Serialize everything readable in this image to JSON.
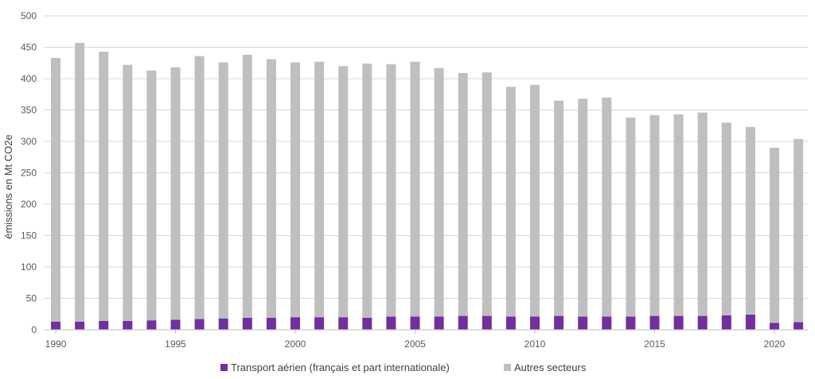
{
  "colors": {
    "air": "#7030A0",
    "other": "#BFBFBF",
    "grid": "#D9D9D9",
    "axis": "#BFBFBF"
  },
  "chart_data": {
    "type": "bar",
    "stacked": true,
    "ylabel": "émissions en Mt CO2e",
    "xlabel": "",
    "ylim": [
      0,
      500
    ],
    "yticks": [
      0,
      50,
      100,
      150,
      200,
      250,
      300,
      350,
      400,
      450,
      500
    ],
    "xtick_labels": [
      "1990",
      "1995",
      "2000",
      "2005",
      "2010",
      "2015",
      "2020"
    ],
    "categories": [
      "1990",
      "1991",
      "1992",
      "1993",
      "1994",
      "1995",
      "1996",
      "1997",
      "1998",
      "1999",
      "2000",
      "2001",
      "2002",
      "2003",
      "2004",
      "2005",
      "2006",
      "2007",
      "2008",
      "2009",
      "2010",
      "2011",
      "2012",
      "2013",
      "2014",
      "2015",
      "2016",
      "2017",
      "2018",
      "2019",
      "2020",
      "2021"
    ],
    "grid": true,
    "legend": "bottom",
    "series": [
      {
        "name": "Transport aérien (français et part internationale)",
        "color_key": "air",
        "values": [
          13,
          13,
          14,
          14,
          15,
          16,
          17,
          18,
          19,
          19,
          20,
          20,
          20,
          19,
          21,
          21,
          21,
          22,
          22,
          21,
          21,
          22,
          21,
          21,
          21,
          22,
          22,
          22,
          23,
          24,
          11,
          12
        ]
      },
      {
        "name": "Autres secteurs",
        "color_key": "other",
        "values": [
          420,
          444,
          429,
          408,
          398,
          402,
          419,
          408,
          419,
          412,
          406,
          407,
          400,
          405,
          402,
          406,
          396,
          387,
          388,
          366,
          369,
          343,
          347,
          349,
          317,
          320,
          321,
          324,
          307,
          299,
          279,
          292
        ]
      }
    ]
  }
}
